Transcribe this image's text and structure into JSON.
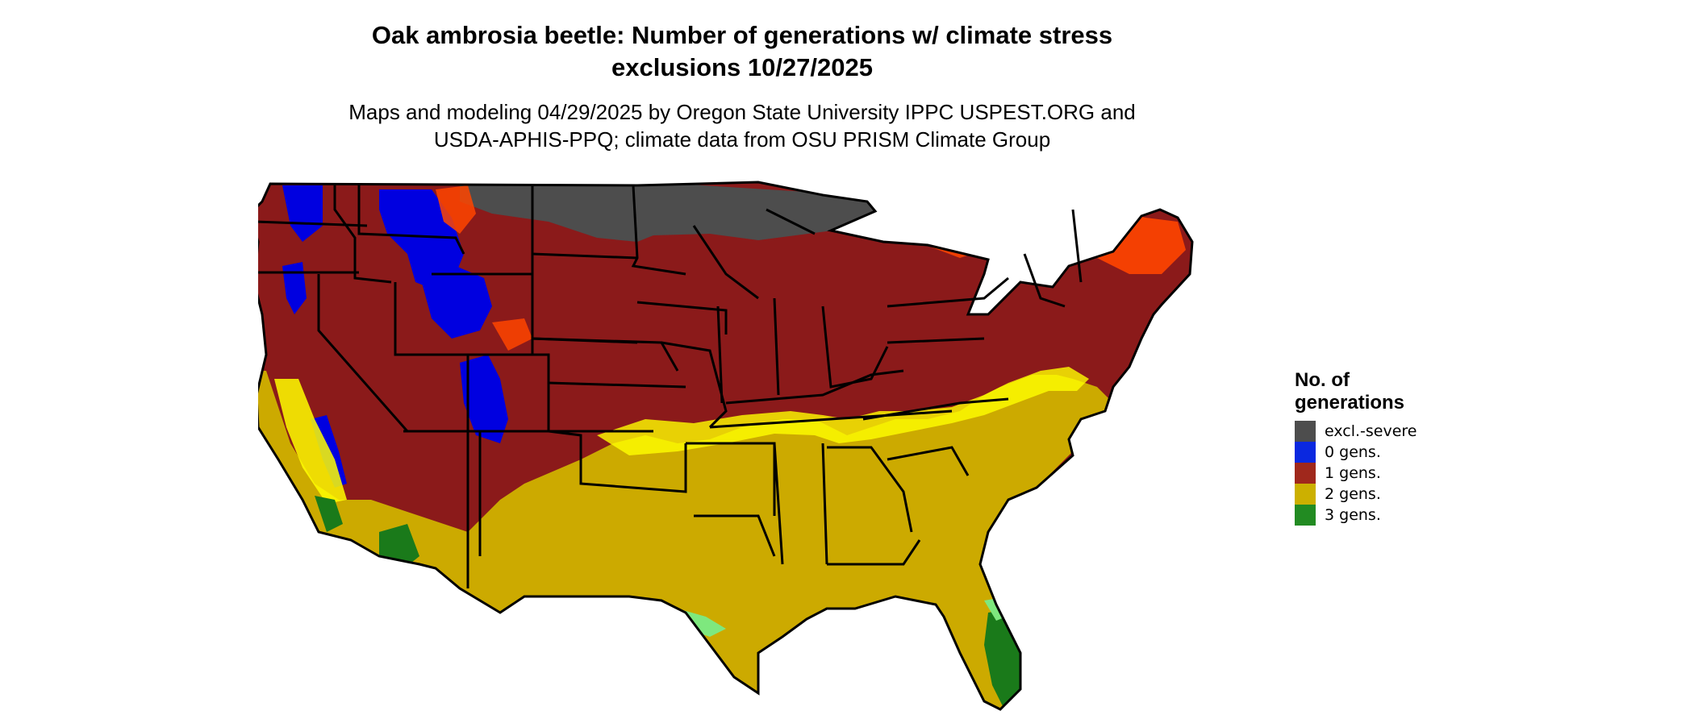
{
  "title_line1": "Oak ambrosia beetle: Number of generations w/ climate stress",
  "title_line2": "exclusions 10/27/2025",
  "subtitle_line1": "Maps and modeling 04/29/2025 by Oregon State University IPPC USPEST.ORG and",
  "subtitle_line2": "USDA-APHIS-PPQ; climate data from OSU PRISM Climate Group",
  "legend": {
    "title": "No. of\ngenerations",
    "items": [
      {
        "label": "excl.-severe",
        "color": "#4d4d4d"
      },
      {
        "label": "0 gens.",
        "color": "#0a28e0"
      },
      {
        "label": "1 gens.",
        "color": "#a0281c"
      },
      {
        "label": "2 gens.",
        "color": "#ccb000"
      },
      {
        "label": "3 gens.",
        "color": "#228b22"
      }
    ]
  },
  "map_colors": {
    "excluded": "#4d4d4d",
    "zero": "#0000e0",
    "one": "#8b1a1a",
    "one_orange": "#ff4500",
    "two": "#ccaa00",
    "two_light": "#ffff00",
    "three": "#1a7a1a",
    "three_light": "#7ee87e",
    "border": "#000000"
  }
}
